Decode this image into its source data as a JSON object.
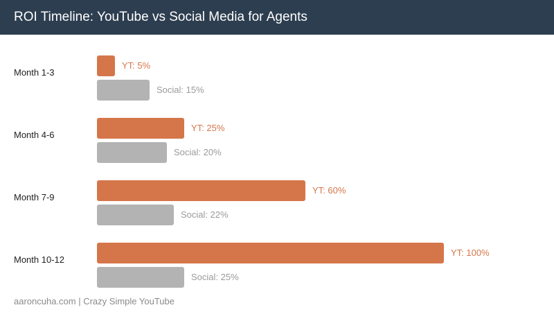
{
  "header": {
    "title": "ROI Timeline: YouTube vs Social Media for Agents"
  },
  "colors": {
    "header_bg": "#2d3e50",
    "youtube": "#d5764a",
    "social": "#b3b3b3",
    "social_text": "#9a9a9a"
  },
  "groups": [
    {
      "label": "Month 1-3",
      "yt_label": "YT: 5%",
      "social_label": "Social: 15%"
    },
    {
      "label": "Month 4-6",
      "yt_label": "YT: 25%",
      "social_label": "Social: 20%"
    },
    {
      "label": "Month 7-9",
      "yt_label": "YT: 60%",
      "social_label": "Social: 22%"
    },
    {
      "label": "Month 10-12",
      "yt_label": "YT: 100%",
      "social_label": "Social: 25%"
    }
  ],
  "footer": {
    "text": "aaroncuha.com | Crazy Simple YouTube"
  },
  "chart_data": {
    "type": "bar",
    "orientation": "horizontal",
    "title": "ROI Timeline: YouTube vs Social Media for Agents",
    "categories": [
      "Month 1-3",
      "Month 4-6",
      "Month 7-9",
      "Month 10-12"
    ],
    "series": [
      {
        "name": "YT",
        "color": "#d5764a",
        "values": [
          5,
          25,
          60,
          100
        ]
      },
      {
        "name": "Social",
        "color": "#b3b3b3",
        "values": [
          15,
          20,
          22,
          25
        ]
      }
    ],
    "xlabel": "",
    "ylabel": "",
    "xlim": [
      0,
      100
    ],
    "grid": false,
    "legend": "none (inline data labels)",
    "value_format": "percent"
  }
}
